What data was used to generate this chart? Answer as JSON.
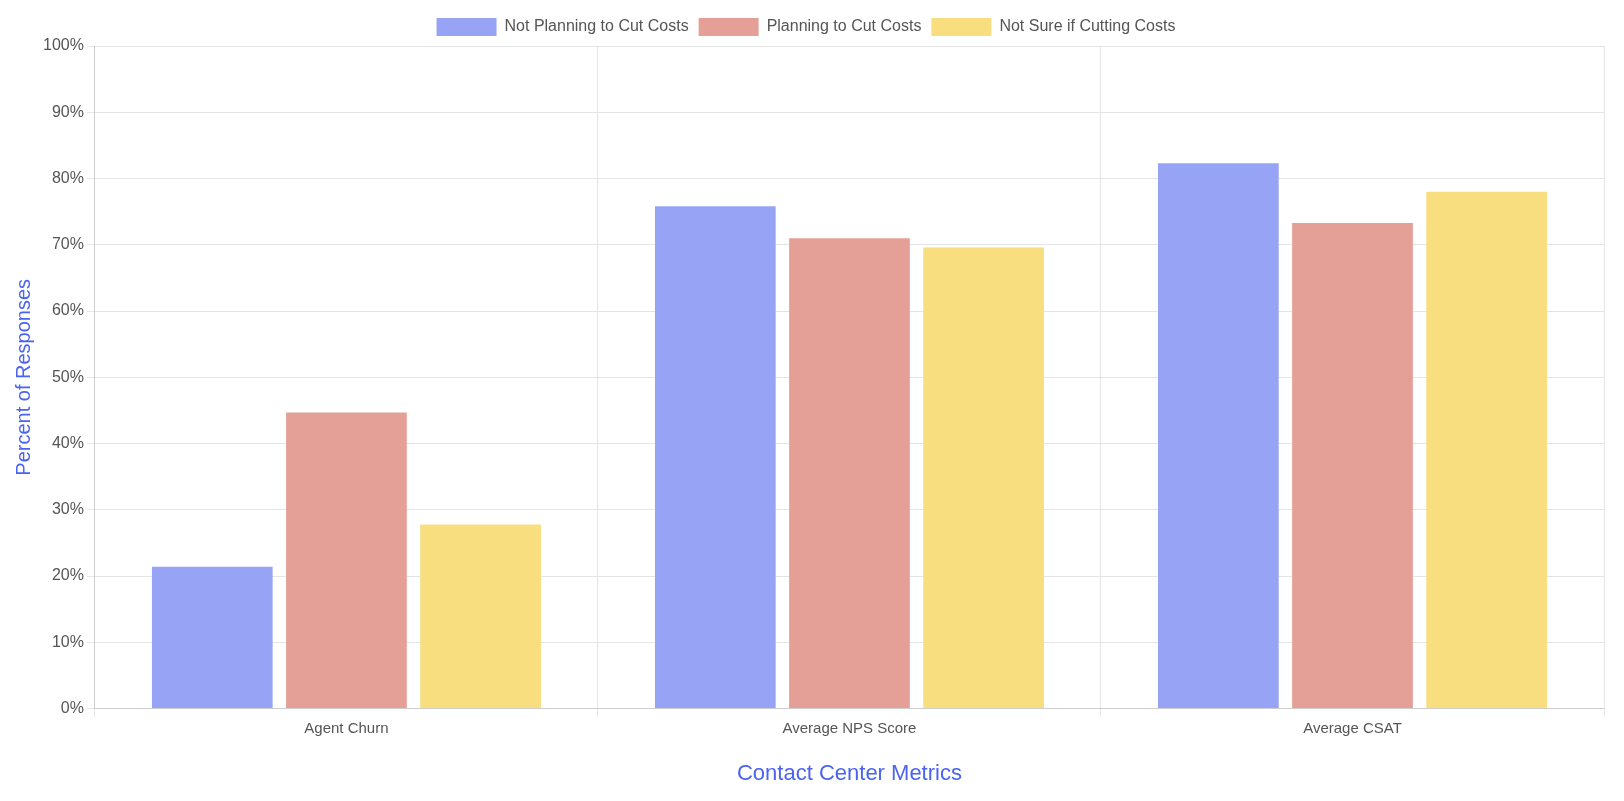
{
  "chart_data": {
    "type": "bar",
    "xlabel": "Contact Center Metrics",
    "ylabel": "Percent of Responses",
    "categories": [
      "Agent Churn",
      "Average NPS Score",
      "Average CSAT"
    ],
    "series": [
      {
        "name": "Not Planning to Cut Costs",
        "color": "#97a4f5",
        "values": [
          21.4,
          75.8,
          82.3
        ]
      },
      {
        "name": "Planning to Cut Costs",
        "color": "#e4a096",
        "values": [
          44.7,
          71.0,
          73.3
        ]
      },
      {
        "name": "Not Sure if Cutting Costs",
        "color": "#f8de7e",
        "values": [
          27.8,
          69.6,
          78.0
        ]
      }
    ],
    "ylim": [
      0,
      100
    ],
    "yticks": [
      {
        "value": 0,
        "label": "0%"
      },
      {
        "value": 10,
        "label": "10%"
      },
      {
        "value": 20,
        "label": "20%"
      },
      {
        "value": 30,
        "label": "30%"
      },
      {
        "value": 40,
        "label": "40%"
      },
      {
        "value": 50,
        "label": "50%"
      },
      {
        "value": 60,
        "label": "60%"
      },
      {
        "value": 70,
        "label": "70%"
      },
      {
        "value": 80,
        "label": "80%"
      },
      {
        "value": 90,
        "label": "90%"
      },
      {
        "value": 100,
        "label": "100%"
      }
    ],
    "grid": true,
    "legend": "top"
  }
}
